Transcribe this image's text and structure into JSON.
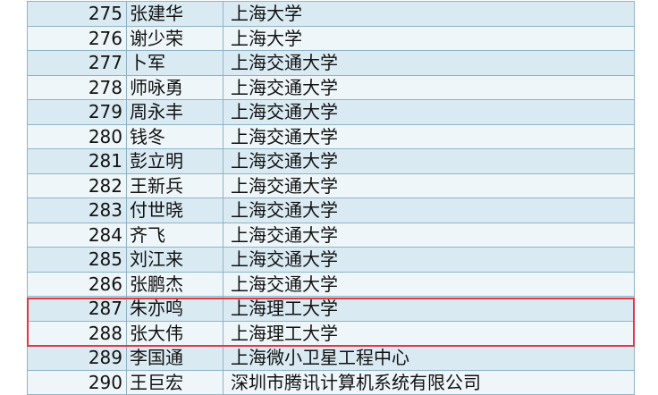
{
  "table": {
    "rows": [
      [
        275,
        "张建华",
        "上海大学"
      ],
      [
        276,
        "谢少荣",
        "上海大学"
      ],
      [
        277,
        "卜军",
        "上海交通大学"
      ],
      [
        278,
        "师咏勇",
        "上海交通大学"
      ],
      [
        279,
        "周永丰",
        "上海交通大学"
      ],
      [
        280,
        "钱冬",
        "上海交通大学"
      ],
      [
        281,
        "彭立明",
        "上海交通大学"
      ],
      [
        282,
        "王新兵",
        "上海交通大学"
      ],
      [
        283,
        "付世晓",
        "上海交通大学"
      ],
      [
        284,
        "齐飞",
        "上海交通大学"
      ],
      [
        285,
        "刘江来",
        "上海交通大学"
      ],
      [
        286,
        "张鹏杰",
        "上海交通大学"
      ],
      [
        287,
        "朱亦鸣",
        "上海理工大学"
      ],
      [
        288,
        "张大伟",
        "上海理工大学"
      ],
      [
        289,
        "李国通",
        "上海微小卫星工程中心"
      ],
      [
        290,
        "王巨宏",
        "深圳市腾讯计算机系统有限公司"
      ]
    ]
  }
}
